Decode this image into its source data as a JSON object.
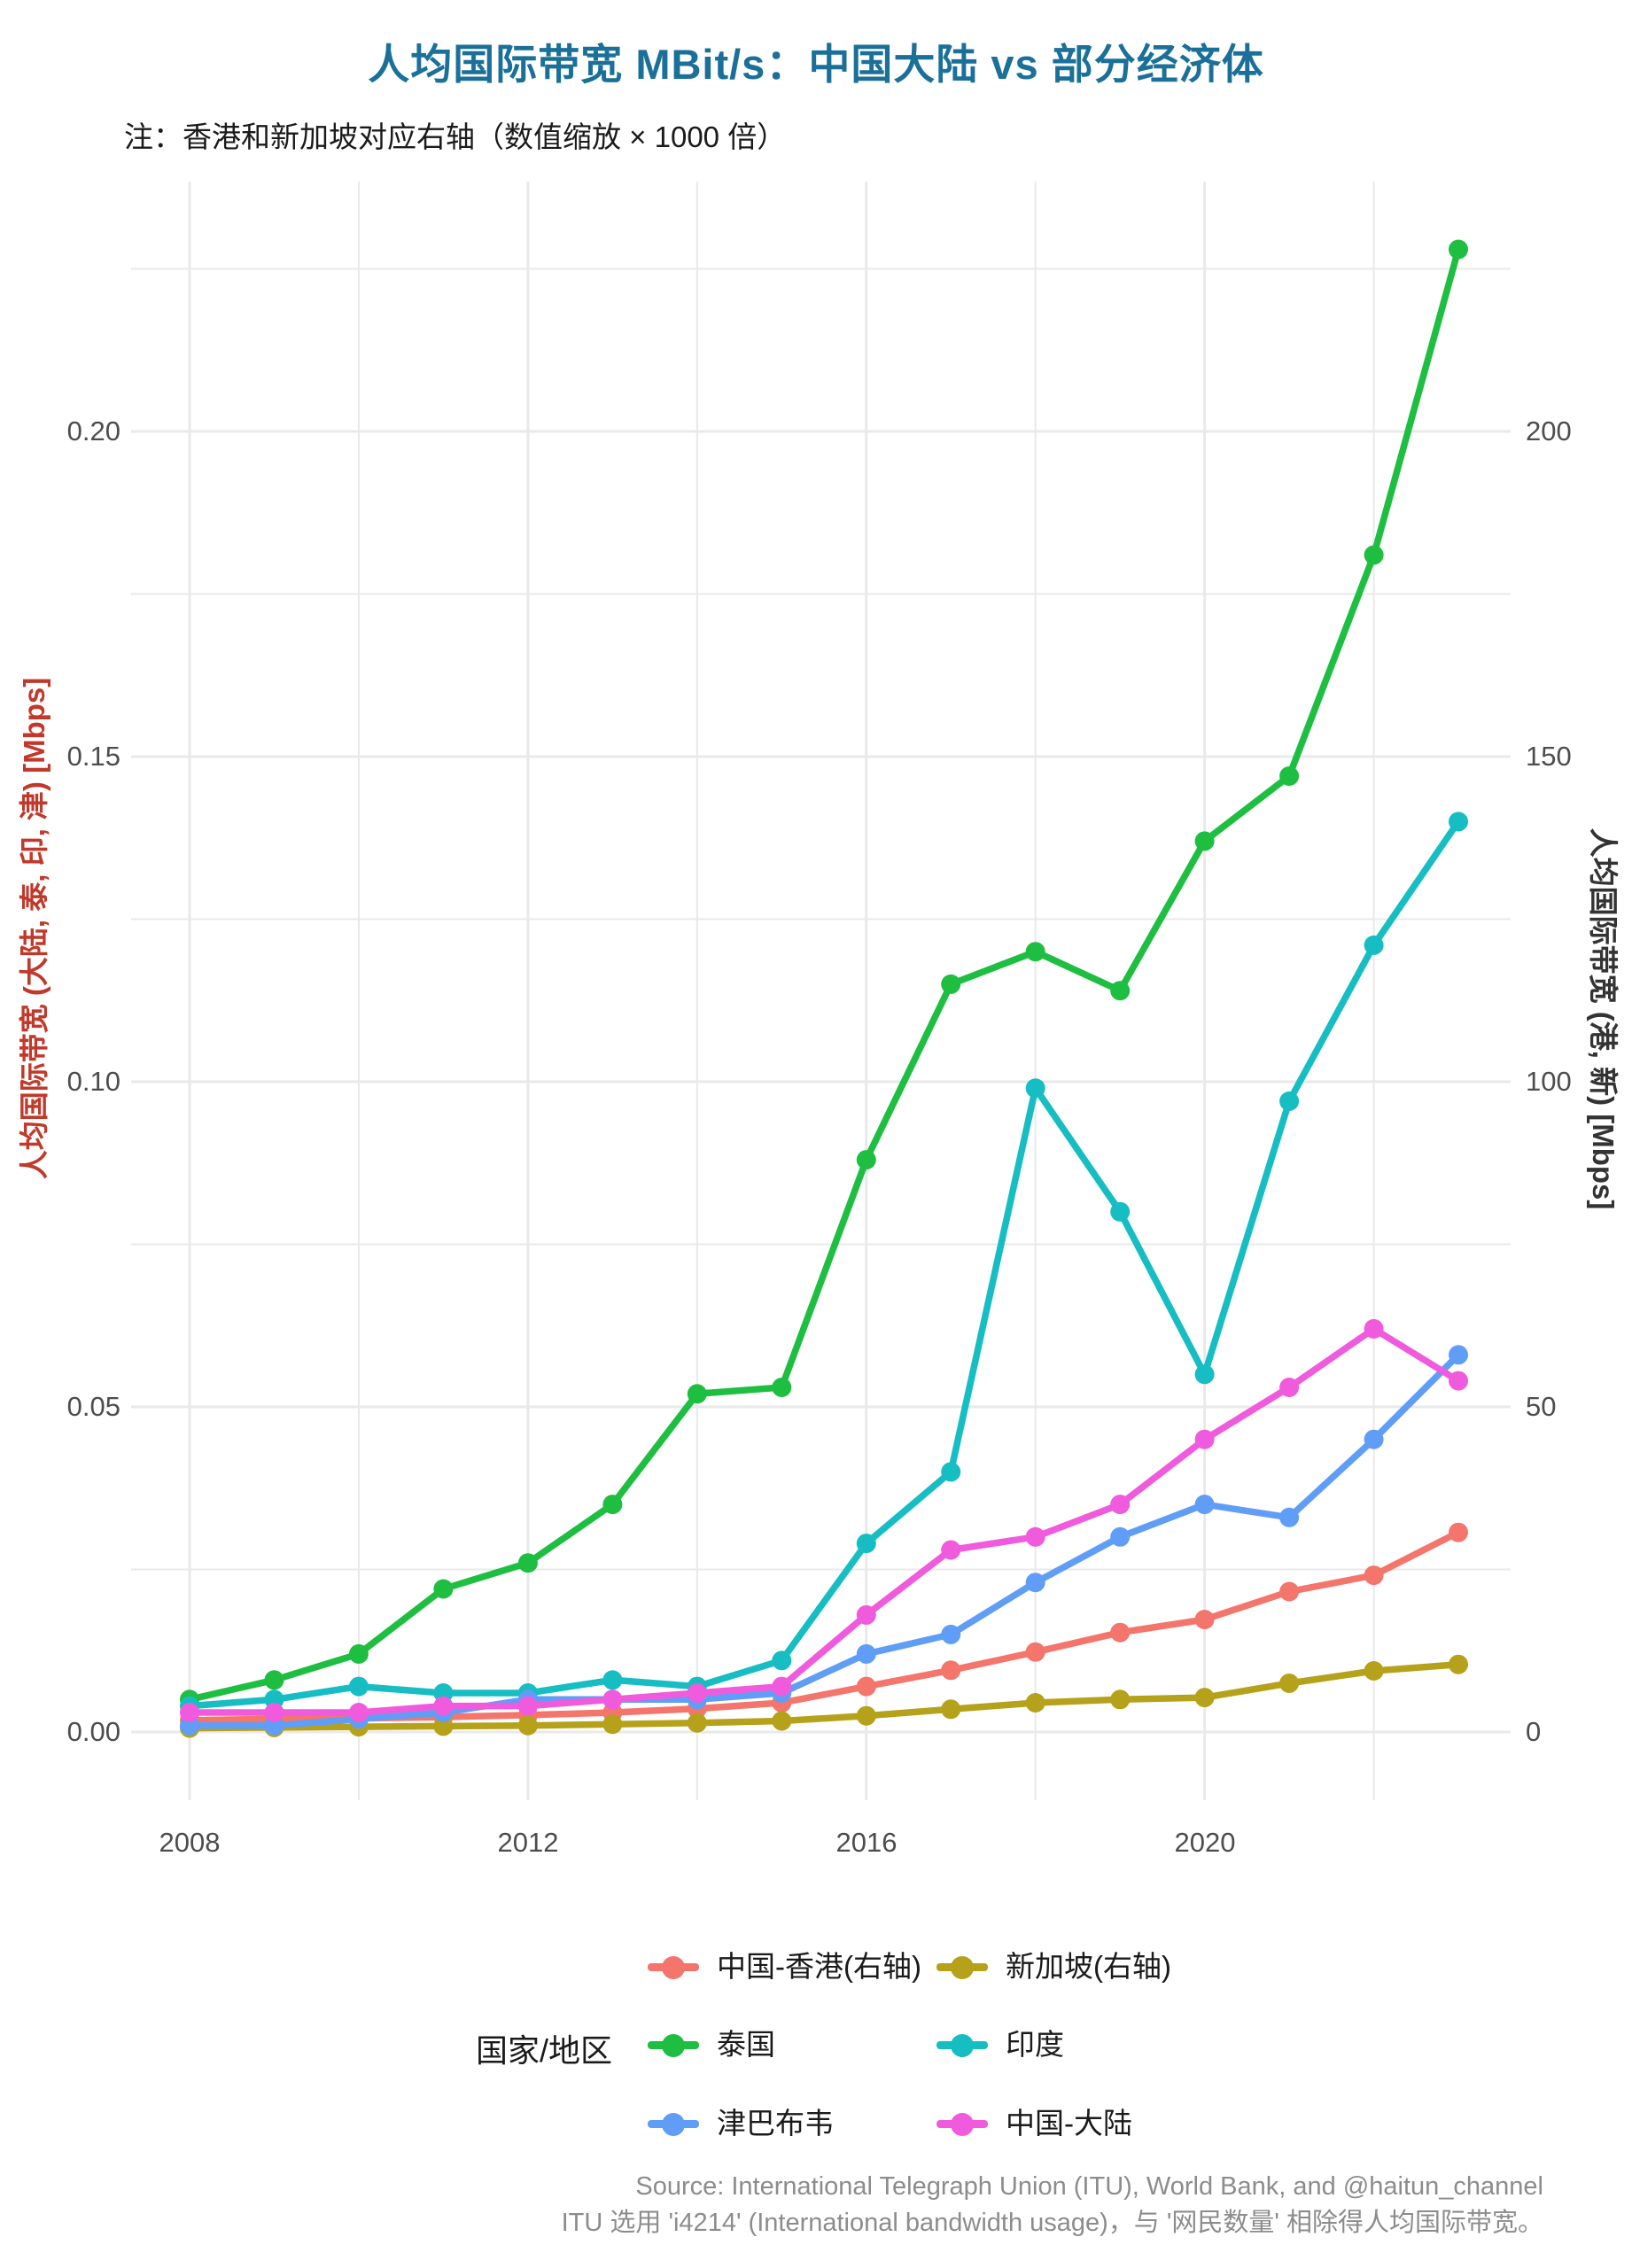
{
  "chart": {
    "title": "人均国际带宽 MBit/s：中国大陆 vs 部分经济体",
    "subtitle": "注：香港和新加坡对应右轴（数值缩放 × 1000 倍）"
  },
  "colors": {
    "title": "#1b7099",
    "subtitle_text": "#1a1a1a",
    "tick_text": "#4d4d4d",
    "grid": "#e9e9e9",
    "background": "#ffffff",
    "left_axis_title": "#c1392b",
    "right_axis_title": "#333333",
    "caption_text": "#8c8c8c"
  },
  "axes": {
    "left": {
      "title": "人均国际带宽 (大陆, 泰, 印, 津) [Mbps]",
      "ticks": [
        "0.00",
        "0.05",
        "0.10",
        "0.15",
        "0.20"
      ],
      "tick_values": [
        0,
        0.05,
        0.1,
        0.15,
        0.2
      ]
    },
    "right": {
      "title": "人均国际带宽 (港, 新) [Mbps]",
      "ticks": [
        "0",
        "50",
        "100",
        "150",
        "200"
      ],
      "tick_values": [
        0,
        50,
        100,
        150,
        200
      ]
    },
    "x": {
      "ticks": [
        "2008",
        "2012",
        "2016",
        "2020"
      ],
      "tick_values": [
        2008,
        2012,
        2016,
        2020
      ]
    }
  },
  "legend": {
    "title": "国家/地区",
    "items": [
      {
        "label": "中国-香港(右轴)",
        "color": "#f3756c"
      },
      {
        "label": "新加坡(右轴)",
        "color": "#b5a11a"
      },
      {
        "label": "泰国",
        "color": "#1ebe41"
      },
      {
        "label": "印度",
        "color": "#16bdc2"
      },
      {
        "label": "津巴布韦",
        "color": "#5f9df7"
      },
      {
        "label": "中国-大陆",
        "color": "#ef5bdc"
      }
    ]
  },
  "caption": {
    "line1": "Source: International Telegraph Union (ITU), World Bank, and @haitun_channel",
    "line2": "ITU 选用 'i4214' (International bandwidth usage)，与 '网民数量' 相除得人均国际带宽。"
  },
  "chart_data": {
    "type": "line",
    "title": "人均国际带宽 MBit/s：中国大陆 vs 部分经济体",
    "subtitle": "注：香港和新加坡对应右轴（数值缩放 × 1000 倍）",
    "xlabel": "",
    "ylabel_left": "人均国际带宽 (大陆, 泰, 印, 津) [Mbps]",
    "ylabel_right": "人均国际带宽 (港, 新) [Mbps]",
    "ylim_left": [
      0,
      0.238
    ],
    "ylim_right": [
      0,
      238
    ],
    "grid": true,
    "legend_position": "bottom",
    "x": [
      2008,
      2009,
      2010,
      2011,
      2012,
      2013,
      2014,
      2015,
      2016,
      2017,
      2018,
      2019,
      2020,
      2021,
      2022,
      2023
    ],
    "x_major_gridlines": [
      2008,
      2012,
      2016,
      2020
    ],
    "x_minor_gridlines": [
      2010,
      2014,
      2018,
      2022
    ],
    "y_major_gridlines_left": [
      0,
      0.05,
      0.1,
      0.15,
      0.2
    ],
    "y_minor_gridlines_left": [
      0.025,
      0.075,
      0.125,
      0.175,
      0.225
    ],
    "series": [
      {
        "name": "中国-香港(右轴)",
        "axis": "right",
        "color": "#f3756c",
        "values": [
          1.8,
          2.0,
          2.1,
          2.3,
          2.6,
          3.0,
          3.6,
          4.5,
          7.0,
          9.5,
          12.3,
          15.3,
          17.3,
          21.6,
          24.1,
          30.7
        ]
      },
      {
        "name": "新加坡(右轴)",
        "axis": "right",
        "color": "#b5a11a",
        "values": [
          0.6,
          0.7,
          0.8,
          0.9,
          1.0,
          1.2,
          1.4,
          1.7,
          2.5,
          3.5,
          4.5,
          5.0,
          5.3,
          7.5,
          9.4,
          10.4
        ]
      },
      {
        "name": "泰国",
        "axis": "left",
        "color": "#1ebe41",
        "values": [
          0.005,
          0.008,
          0.012,
          0.022,
          0.026,
          0.035,
          0.052,
          0.053,
          0.088,
          0.115,
          0.12,
          0.114,
          0.137,
          0.147,
          0.181,
          0.228
        ]
      },
      {
        "name": "印度",
        "axis": "left",
        "color": "#16bdc2",
        "values": [
          0.004,
          0.005,
          0.007,
          0.006,
          0.006,
          0.008,
          0.007,
          0.011,
          0.029,
          0.04,
          0.099,
          0.08,
          0.055,
          0.097,
          0.121,
          0.14
        ]
      },
      {
        "name": "津巴布韦",
        "axis": "left",
        "color": "#5f9df7",
        "values": [
          0.001,
          0.001,
          0.002,
          0.003,
          0.005,
          0.005,
          0.005,
          0.006,
          0.012,
          0.015,
          0.023,
          0.03,
          0.035,
          0.033,
          0.045,
          0.058
        ]
      },
      {
        "name": "中国-大陆",
        "axis": "left",
        "color": "#ef5bdc",
        "values": [
          0.003,
          0.003,
          0.003,
          0.004,
          0.004,
          0.005,
          0.006,
          0.007,
          0.018,
          0.028,
          0.03,
          0.035,
          0.045,
          0.053,
          0.062,
          0.054
        ]
      }
    ]
  }
}
